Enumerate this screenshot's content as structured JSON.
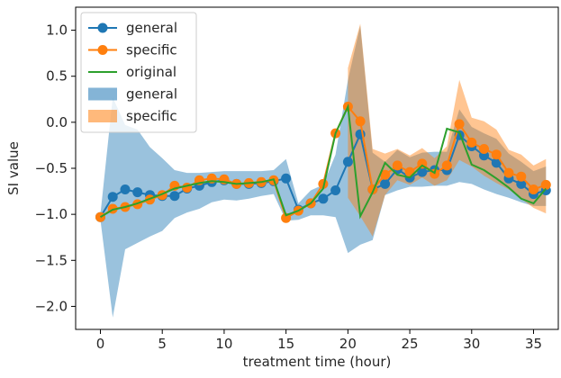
{
  "chart_data": {
    "type": "line",
    "title": "",
    "xlabel": "treatment time (hour)",
    "ylabel": "SI value",
    "xlim": [
      -2,
      37
    ],
    "ylim": [
      -2.25,
      1.25
    ],
    "xticks": [
      0,
      5,
      10,
      15,
      20,
      25,
      30,
      35
    ],
    "xtick_labels": [
      "0",
      "5",
      "10",
      "15",
      "20",
      "25",
      "30",
      "35"
    ],
    "yticks": [
      -2.0,
      -1.5,
      -1.0,
      -0.5,
      0.0,
      0.5,
      1.0
    ],
    "ytick_labels": [
      "−2.0",
      "−1.5",
      "−1.0",
      "−0.5",
      "0.0",
      "0.5",
      "1.0"
    ],
    "grid": false,
    "legend_position": "top-left",
    "legend": [
      "general",
      "specific",
      "original",
      "general",
      "specific"
    ],
    "x": [
      0,
      1,
      2,
      3,
      4,
      5,
      6,
      7,
      8,
      9,
      10,
      11,
      12,
      13,
      14,
      15,
      16,
      17,
      18,
      19,
      20,
      21,
      22,
      23,
      24,
      25,
      26,
      27,
      28,
      29,
      30,
      31,
      32,
      33,
      34,
      35,
      36
    ],
    "series": [
      {
        "name": "general",
        "kind": "line-marker",
        "color": "#1f77b4",
        "values": [
          -1.03,
          -0.81,
          -0.73,
          -0.76,
          -0.79,
          -0.8,
          -0.8,
          -0.72,
          -0.69,
          -0.65,
          -0.63,
          -0.67,
          -0.67,
          -0.66,
          -0.64,
          -0.61,
          -0.95,
          -0.88,
          -0.83,
          -0.74,
          -0.43,
          -0.13,
          -0.73,
          -0.67,
          -0.51,
          -0.6,
          -0.54,
          -0.52,
          -0.52,
          -0.14,
          -0.26,
          -0.36,
          -0.44,
          -0.61,
          -0.67,
          -0.78,
          -0.74
        ]
      },
      {
        "name": "specific",
        "kind": "line-marker",
        "color": "#ff7f0e",
        "values": [
          -1.03,
          -0.94,
          -0.92,
          -0.89,
          -0.84,
          -0.79,
          -0.69,
          -0.71,
          -0.63,
          -0.61,
          -0.62,
          -0.67,
          -0.66,
          -0.65,
          -0.63,
          -1.04,
          -0.96,
          -0.88,
          -0.67,
          -0.12,
          0.17,
          0.01,
          -0.73,
          -0.57,
          -0.47,
          -0.54,
          -0.45,
          -0.56,
          -0.47,
          -0.02,
          -0.22,
          -0.29,
          -0.35,
          -0.55,
          -0.59,
          -0.73,
          -0.68
        ]
      },
      {
        "name": "original",
        "kind": "line",
        "color": "#2ca02c",
        "values": [
          -1.03,
          -0.95,
          -0.92,
          -0.88,
          -0.83,
          -0.78,
          -0.72,
          -0.69,
          -0.66,
          -0.64,
          -0.65,
          -0.67,
          -0.66,
          -0.65,
          -0.62,
          -1.01,
          -0.96,
          -0.88,
          -0.72,
          -0.12,
          0.17,
          -1.02,
          -0.76,
          -0.44,
          -0.57,
          -0.6,
          -0.47,
          -0.55,
          -0.07,
          -0.11,
          -0.46,
          -0.52,
          -0.61,
          -0.71,
          -0.83,
          -0.88,
          -0.72
        ]
      }
    ],
    "bands": [
      {
        "name": "general",
        "color": "#1f77b4",
        "opacity": 0.45,
        "lower": [
          -1.06,
          -2.12,
          -1.38,
          -1.31,
          -1.24,
          -1.18,
          -1.04,
          -0.98,
          -0.94,
          -0.87,
          -0.84,
          -0.85,
          -0.83,
          -0.8,
          -0.78,
          -1.07,
          -1.06,
          -1.01,
          -1.01,
          -1.03,
          -1.42,
          -1.33,
          -1.28,
          -0.79,
          -0.74,
          -0.7,
          -0.7,
          -0.69,
          -0.69,
          -0.65,
          -0.67,
          -0.73,
          -0.78,
          -0.82,
          -0.87,
          -0.91,
          -0.91
        ],
        "upper": [
          -1.0,
          0.27,
          -0.03,
          -0.08,
          -0.27,
          -0.39,
          -0.52,
          -0.55,
          -0.55,
          -0.54,
          -0.53,
          -0.53,
          -0.53,
          -0.53,
          -0.52,
          -0.4,
          -0.88,
          -0.74,
          -0.68,
          -0.35,
          0.46,
          1.05,
          -0.33,
          -0.43,
          -0.3,
          -0.38,
          -0.33,
          -0.32,
          -0.32,
          0.14,
          -0.05,
          -0.12,
          -0.18,
          -0.34,
          -0.43,
          -0.53,
          -0.48
        ]
      },
      {
        "name": "specific",
        "color": "#ff7f0e",
        "opacity": 0.45,
        "lower": [
          null,
          null,
          null,
          null,
          null,
          null,
          null,
          null,
          null,
          null,
          null,
          null,
          null,
          null,
          null,
          null,
          null,
          null,
          null,
          null,
          -0.82,
          -1.02,
          -1.24,
          -0.79,
          -0.63,
          -0.68,
          -0.6,
          -0.69,
          -0.63,
          -0.41,
          -0.48,
          -0.58,
          -0.66,
          -0.73,
          -0.83,
          -0.93,
          -0.99
        ],
        "upper": [
          null,
          null,
          null,
          null,
          null,
          null,
          null,
          null,
          null,
          null,
          null,
          null,
          null,
          null,
          null,
          null,
          null,
          null,
          null,
          null,
          0.59,
          1.07,
          -0.29,
          -0.34,
          -0.29,
          -0.36,
          -0.28,
          -0.39,
          -0.26,
          0.46,
          0.05,
          0.01,
          -0.08,
          -0.3,
          -0.35,
          -0.47,
          -0.4
        ]
      }
    ]
  }
}
